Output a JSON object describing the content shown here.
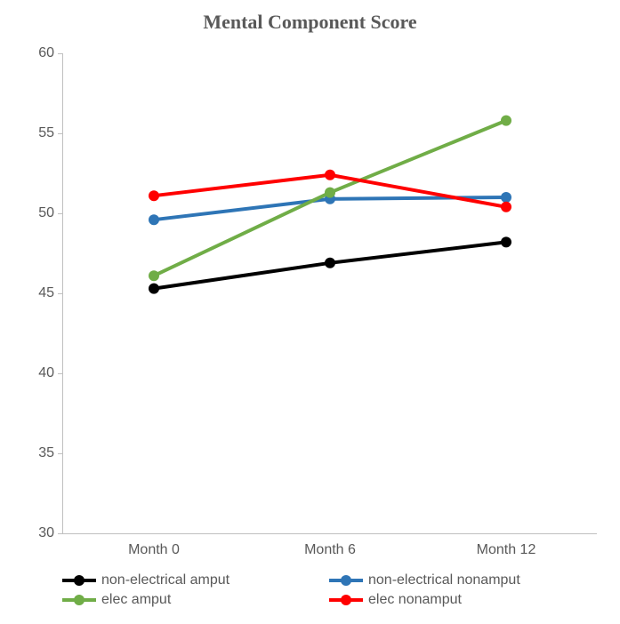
{
  "chart": {
    "type": "line",
    "title": "Mental Component Score",
    "title_fontsize": 22,
    "title_color": "#595959",
    "background_color": "#ffffff",
    "axis_color": "#bfbfbf",
    "tick_color": "#bfbfbf",
    "label_color": "#595959",
    "label_fontsize": 16,
    "legend_fontsize": 16,
    "x_categories": [
      "Month 0",
      "Month 6",
      "Month 12"
    ],
    "x_positions": [
      0.17,
      0.5,
      0.83
    ],
    "ylim": [
      30,
      60
    ],
    "ytick_step": 5,
    "yticks": [
      30,
      35,
      40,
      45,
      50,
      55,
      60
    ],
    "line_width": 4,
    "marker_radius": 6,
    "series": [
      {
        "name": "non-electrical amput",
        "color": "#000000",
        "values": [
          45.3,
          46.9,
          48.2
        ]
      },
      {
        "name": "non-electrical nonamput",
        "color": "#2e75b6",
        "values": [
          49.6,
          50.9,
          51.0
        ]
      },
      {
        "name": "elec amput",
        "color": "#70ad47",
        "values": [
          46.1,
          51.3,
          55.8
        ]
      },
      {
        "name": "elec nonamput",
        "color": "#ff0000",
        "values": [
          51.1,
          52.4,
          50.4
        ]
      }
    ],
    "legend_order": [
      0,
      1,
      2,
      3
    ]
  }
}
